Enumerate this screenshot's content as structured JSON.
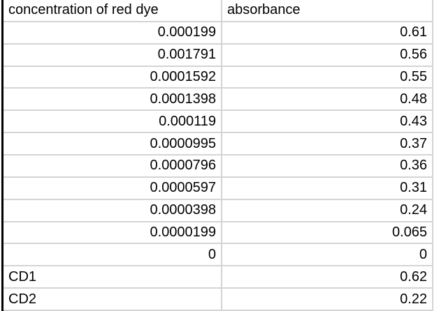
{
  "table": {
    "columns": [
      "concentration of red dye",
      "absorbance"
    ],
    "rows": [
      [
        "0.000199",
        "0.61"
      ],
      [
        "0.001791",
        "0.56"
      ],
      [
        "0.0001592",
        "0.55"
      ],
      [
        "0.0001398",
        "0.48"
      ],
      [
        "0.000119",
        "0.43"
      ],
      [
        "0.0000995",
        "0.37"
      ],
      [
        "0.0000796",
        "0.36"
      ],
      [
        "0.0000597",
        "0.31"
      ],
      [
        "0.0000398",
        "0.24"
      ],
      [
        "0.0000199",
        "0.065"
      ],
      [
        "0",
        "0"
      ],
      [
        "CD1",
        "0.62"
      ],
      [
        "CD2",
        "0.22"
      ]
    ]
  },
  "colors": {
    "background": "#ffffff",
    "text": "#000000",
    "gridline": "#d4d4d4",
    "left_border": "#000000"
  }
}
